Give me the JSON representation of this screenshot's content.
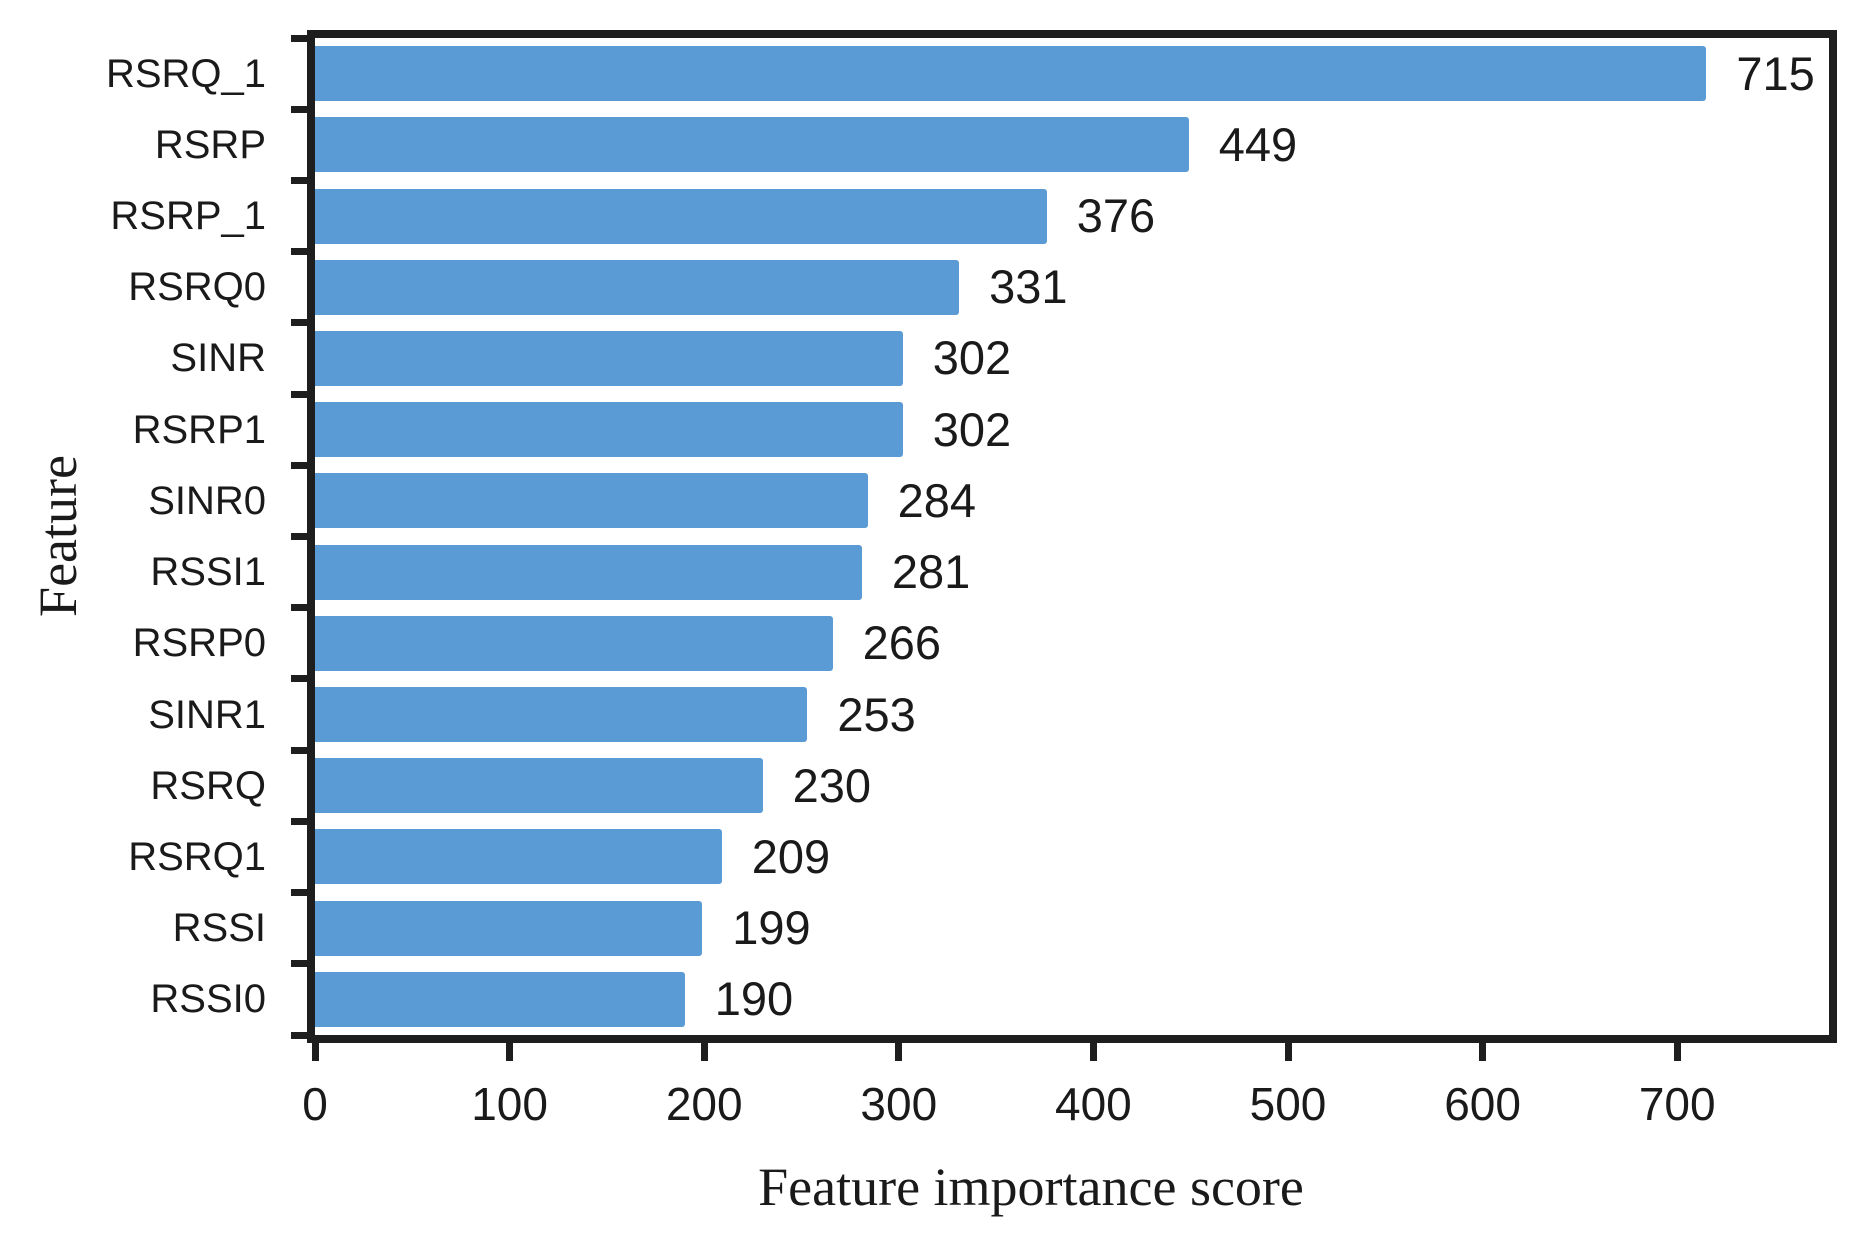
{
  "chart_data": {
    "type": "bar",
    "orientation": "horizontal",
    "title": "",
    "xlabel": "Feature importance score",
    "ylabel": "Feature",
    "categories": [
      "RSRQ_1",
      "RSRP",
      "RSRP_1",
      "RSRQ0",
      "SINR",
      "RSRP1",
      "SINR0",
      "RSSI1",
      "RSRP0",
      "SINR1",
      "RSRQ",
      "RSRQ1",
      "RSSI",
      "RSSI0"
    ],
    "values": [
      715,
      449,
      376,
      331,
      302,
      302,
      284,
      281,
      266,
      253,
      230,
      209,
      199,
      190
    ],
    "value_labels": [
      "715",
      "449",
      "376",
      "331",
      "302",
      "302",
      "284",
      "281",
      "266",
      "253",
      "230",
      "209",
      "199",
      "190"
    ],
    "xlim": [
      0,
      778
    ],
    "x_ticks": [
      0,
      100,
      200,
      300,
      400,
      500,
      600,
      700
    ],
    "x_tick_labels": [
      "0",
      "100",
      "200",
      "300",
      "400",
      "500",
      "600",
      "700"
    ],
    "grid": "off",
    "legend": "none",
    "bar_color": "#5B9BD5",
    "axis_color": "#1E1E1E",
    "text_color": "#1A1A1A",
    "background_color": "#FFFFFF"
  }
}
